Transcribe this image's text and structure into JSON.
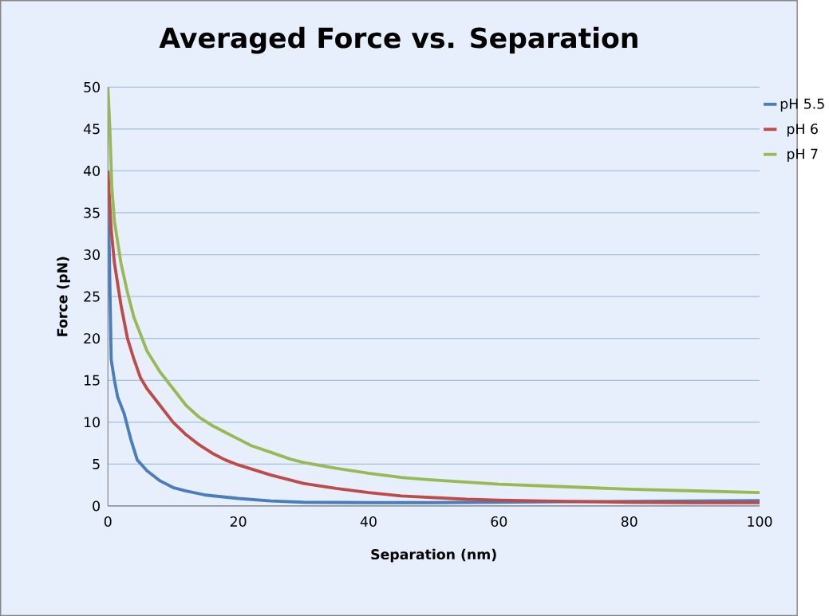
{
  "chart_data": {
    "type": "line",
    "title": "Averaged Force vs. Separation",
    "xlabel": "Separation (nm)",
    "ylabel": "Force  (pN)",
    "xlim": [
      0,
      100
    ],
    "xticks": [
      0,
      20,
      40,
      60,
      80,
      100
    ],
    "ylim": [
      0,
      50
    ],
    "yticks": [
      0,
      5,
      10,
      15,
      20,
      25,
      30,
      35,
      40,
      45,
      50
    ],
    "grid": "y",
    "legend": "right",
    "series": [
      {
        "name": "pH 5.5",
        "color": "#4a7ebb",
        "x": [
          0,
          0.5,
          1,
          1.5,
          2.5,
          3.5,
          4.5,
          6,
          8,
          10,
          12,
          15,
          20,
          25,
          30,
          40,
          50,
          60,
          70,
          80,
          90,
          100
        ],
        "values": [
          40,
          17.5,
          15,
          13,
          11,
          8,
          5.5,
          4.2,
          3,
          2.2,
          1.8,
          1.3,
          0.9,
          0.6,
          0.45,
          0.4,
          0.4,
          0.45,
          0.5,
          0.55,
          0.6,
          0.65
        ]
      },
      {
        "name": "pH 6",
        "color": "#be4b48",
        "x": [
          0,
          0.5,
          1,
          2,
          3,
          4,
          5,
          6,
          7,
          8,
          10,
          12,
          14,
          16,
          18,
          20,
          25,
          30,
          35,
          40,
          45,
          50,
          55,
          60,
          70,
          80,
          90,
          100
        ],
        "values": [
          40,
          33,
          29,
          24,
          20,
          17.5,
          15.3,
          14,
          13,
          12,
          10,
          8.5,
          7.3,
          6.3,
          5.5,
          4.9,
          3.7,
          2.7,
          2.1,
          1.6,
          1.2,
          1,
          0.8,
          0.7,
          0.55,
          0.45,
          0.4,
          0.4
        ]
      },
      {
        "name": "pH 7",
        "color": "#98b954",
        "x": [
          0,
          0.3,
          0.6,
          1,
          2,
          3,
          4,
          5,
          6,
          8,
          10,
          12,
          14,
          16,
          18,
          20,
          22,
          25,
          28,
          30,
          35,
          40,
          45,
          50,
          60,
          70,
          80,
          90,
          100
        ],
        "values": [
          50,
          45,
          38,
          34,
          29,
          25.5,
          22.5,
          20.5,
          18.5,
          16,
          14,
          12,
          10.6,
          9.6,
          8.8,
          8,
          7.2,
          6.4,
          5.6,
          5.2,
          4.5,
          3.9,
          3.4,
          3.1,
          2.6,
          2.3,
          2,
          1.8,
          1.6
        ]
      }
    ]
  }
}
